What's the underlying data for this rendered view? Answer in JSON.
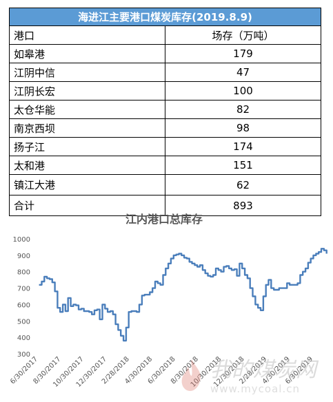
{
  "table": {
    "title": "海进江主要港口煤炭库存(2019.8.9)",
    "header": {
      "port": "港口",
      "stock": "场存（万吨）"
    },
    "rows": [
      {
        "port": "如皋港",
        "stock": "179"
      },
      {
        "port": "江阴中信",
        "stock": "47"
      },
      {
        "port": "江阴长宏",
        "stock": "100"
      },
      {
        "port": "太仓华能",
        "stock": "82"
      },
      {
        "port": "南京西坝",
        "stock": "98"
      },
      {
        "port": "扬子江",
        "stock": "174"
      },
      {
        "port": "太和港",
        "stock": "151"
      },
      {
        "port": "镇江大港",
        "stock": "62"
      },
      {
        "port": "合计",
        "stock": "893"
      }
    ]
  },
  "chart_data": {
    "type": "line",
    "title": "江内港口总库存",
    "xlabel": "",
    "ylabel": "",
    "ylim": [
      300,
      1000
    ],
    "yticks": [
      1000,
      900,
      800,
      700,
      600,
      500,
      400,
      300
    ],
    "xticks": [
      "6/30/2017",
      "8/30/2017",
      "10/30/2017",
      "12/30/2017",
      "2/28/2018",
      "4/30/2018",
      "6/30/2018",
      "8/30/2018",
      "10/30/2018",
      "12/30/2018",
      "2/28/2019",
      "4/30/2019",
      "6/30/2019"
    ],
    "grid": false,
    "line_color": "#4a7ebb",
    "series": [
      {
        "x": [
          "2017-07-03",
          "2017-07-10",
          "2017-07-17",
          "2017-07-24",
          "2017-07-31",
          "2017-08-07",
          "2017-08-14",
          "2017-08-21",
          "2017-08-28",
          "2017-09-04",
          "2017-09-11",
          "2017-09-18",
          "2017-09-25",
          "2017-10-02",
          "2017-10-09",
          "2017-10-16",
          "2017-10-23",
          "2017-10-30",
          "2017-11-06",
          "2017-11-13",
          "2017-11-20",
          "2017-11-27",
          "2017-12-04",
          "2017-12-11",
          "2017-12-18",
          "2017-12-25",
          "2018-01-01",
          "2018-01-08",
          "2018-01-15",
          "2018-01-22",
          "2018-01-29",
          "2018-02-05",
          "2018-02-12",
          "2018-02-19",
          "2018-02-26",
          "2018-03-05",
          "2018-03-12",
          "2018-03-19",
          "2018-03-26",
          "2018-04-02",
          "2018-04-09",
          "2018-04-16",
          "2018-04-23",
          "2018-04-30",
          "2018-05-07",
          "2018-05-14",
          "2018-05-21",
          "2018-05-28",
          "2018-06-04",
          "2018-06-11",
          "2018-06-18",
          "2018-06-25",
          "2018-07-02",
          "2018-07-09",
          "2018-07-16",
          "2018-07-23",
          "2018-07-30",
          "2018-08-06",
          "2018-08-13",
          "2018-08-20",
          "2018-08-27",
          "2018-09-03",
          "2018-09-10",
          "2018-09-17",
          "2018-09-24",
          "2018-10-01",
          "2018-10-08",
          "2018-10-15",
          "2018-10-22",
          "2018-10-29",
          "2018-11-05",
          "2018-11-12",
          "2018-11-19",
          "2018-11-26",
          "2018-12-03",
          "2018-12-10",
          "2018-12-17",
          "2018-12-24",
          "2018-12-31",
          "2019-01-07",
          "2019-01-14",
          "2019-01-21",
          "2019-01-28",
          "2019-02-04",
          "2019-02-11",
          "2019-02-18",
          "2019-02-25",
          "2019-03-04",
          "2019-03-11",
          "2019-03-18",
          "2019-03-25",
          "2019-04-01",
          "2019-04-08",
          "2019-04-15",
          "2019-04-22",
          "2019-04-29",
          "2019-05-06",
          "2019-05-13",
          "2019-05-20",
          "2019-05-27",
          "2019-06-03",
          "2019-06-10",
          "2019-06-17",
          "2019-06-24",
          "2019-07-01",
          "2019-07-08",
          "2019-07-15",
          "2019-07-22",
          "2019-07-29",
          "2019-08-05"
        ],
        "values": [
          720,
          740,
          770,
          760,
          755,
          735,
          680,
          580,
          555,
          600,
          560,
          640,
          590,
          600,
          595,
          570,
          575,
          560,
          560,
          555,
          540,
          565,
          570,
          510,
          600,
          575,
          555,
          560,
          540,
          480,
          445,
          410,
          380,
          460,
          555,
          560,
          560,
          555,
          600,
          655,
          660,
          660,
          675,
          700,
          740,
          730,
          720,
          780,
          820,
          850,
          880,
          900,
          905,
          910,
          900,
          885,
          880,
          860,
          850,
          840,
          830,
          840,
          810,
          790,
          775,
          770,
          780,
          820,
          810,
          800,
          830,
          835,
          820,
          810,
          815,
          775,
          850,
          820,
          780,
          760,
          700,
          650,
          600,
          580,
          565,
          650,
          720,
          750,
          700,
          690,
          690,
          700,
          700,
          700,
          730,
          720,
          720,
          720,
          730,
          780,
          800,
          820,
          855,
          880,
          900,
          910,
          920,
          940,
          930,
          910
        ]
      }
    ]
  }
}
